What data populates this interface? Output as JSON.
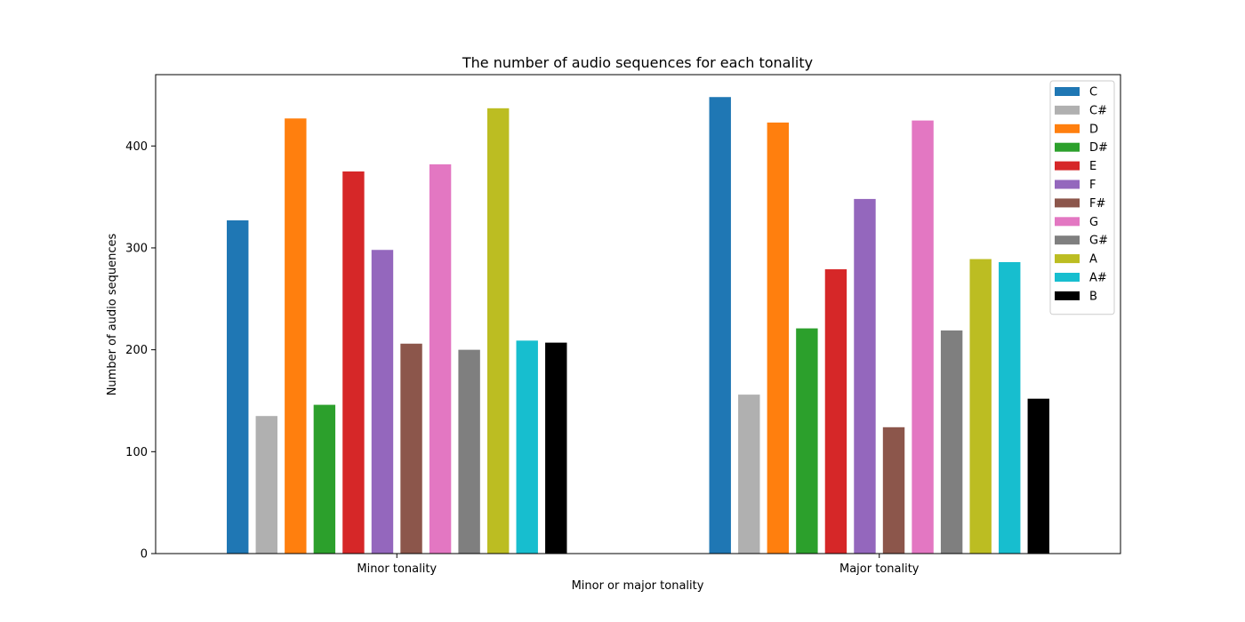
{
  "chart_data": {
    "type": "bar",
    "title": "The number of audio sequences for each tonality",
    "xlabel": "Minor or major tonality",
    "ylabel": "Number of audio sequences",
    "categories": [
      "Minor tonality",
      "Major tonality"
    ],
    "ylim": [
      0,
      470
    ],
    "yticks": [
      0,
      100,
      200,
      300,
      400
    ],
    "grid": false,
    "legend_position": "top-right",
    "series": [
      {
        "name": "C",
        "color": "#1f77b4",
        "values": [
          327,
          448
        ]
      },
      {
        "name": "C#",
        "color": "#b0b0b0",
        "values": [
          135,
          156
        ]
      },
      {
        "name": "D",
        "color": "#ff7f0e",
        "values": [
          427,
          423
        ]
      },
      {
        "name": "D#",
        "color": "#2ca02c",
        "values": [
          146,
          221
        ]
      },
      {
        "name": "E",
        "color": "#d62728",
        "values": [
          375,
          279
        ]
      },
      {
        "name": "F",
        "color": "#9467bd",
        "values": [
          298,
          348
        ]
      },
      {
        "name": "F#",
        "color": "#8c564b",
        "values": [
          206,
          124
        ]
      },
      {
        "name": "G",
        "color": "#e377c2",
        "values": [
          382,
          425
        ]
      },
      {
        "name": "G#",
        "color": "#7f7f7f",
        "values": [
          200,
          219
        ]
      },
      {
        "name": "A",
        "color": "#bcbd22",
        "values": [
          437,
          289
        ]
      },
      {
        "name": "A#",
        "color": "#17becf",
        "values": [
          209,
          286
        ]
      },
      {
        "name": "B",
        "color": "#000000",
        "values": [
          207,
          152
        ]
      }
    ]
  }
}
